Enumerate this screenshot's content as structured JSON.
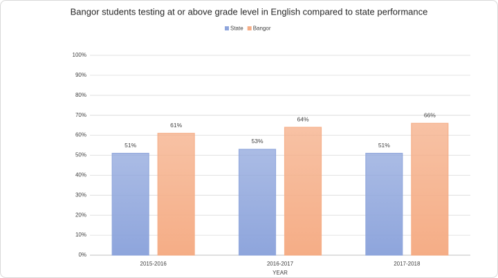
{
  "chart_data": {
    "type": "bar",
    "title": "Bangor students testing at or above grade level in English compared to state performance",
    "x_label": "YEAR",
    "categories": [
      "2015-2016",
      "2016-2017",
      "2017-2018"
    ],
    "series": [
      {
        "name": "State",
        "color": "#8ea5dc",
        "values": [
          51,
          53,
          51
        ],
        "value_labels": [
          "51%",
          "53%",
          "51%"
        ]
      },
      {
        "name": "Bangor",
        "color": "#f5ad86",
        "values": [
          61,
          64,
          66
        ],
        "value_labels": [
          "61%",
          "64%",
          "66%"
        ]
      }
    ],
    "ylim": [
      0,
      100
    ],
    "yticks": [
      {
        "value": 0,
        "label": "0%"
      },
      {
        "value": 10,
        "label": "10%"
      },
      {
        "value": 20,
        "label": "20%"
      },
      {
        "value": 30,
        "label": "30%"
      },
      {
        "value": 40,
        "label": "40%"
      },
      {
        "value": 50,
        "label": "50%"
      },
      {
        "value": 60,
        "label": "60%"
      },
      {
        "value": 70,
        "label": "70%"
      },
      {
        "value": 80,
        "label": "80%"
      },
      {
        "value": 90,
        "label": "90%"
      },
      {
        "value": 100,
        "label": "100%"
      }
    ],
    "grid": true,
    "legend": "top"
  }
}
